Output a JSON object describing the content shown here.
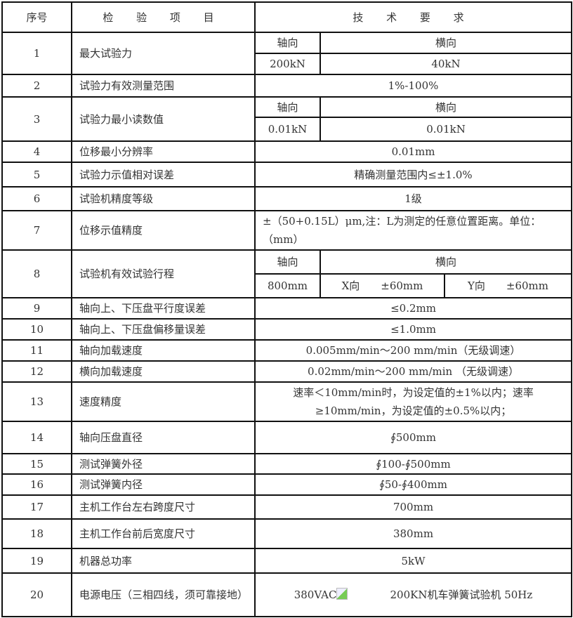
{
  "header": {
    "no": "序号",
    "item": "检 验 项 目",
    "requirement": "技 术 要 求"
  },
  "rows": [
    {
      "no": "1",
      "item": "最大试验力",
      "axial_label": "轴向",
      "lateral_label": "横向",
      "axial": "200kN",
      "lateral": "40kN"
    },
    {
      "no": "2",
      "item": "试验力有效测量范围",
      "value": "1%-100%"
    },
    {
      "no": "3",
      "item": "试验力最小读数值",
      "axial_label": "轴向",
      "lateral_label": "横向",
      "axial": "0.01kN",
      "lateral": "0.01kN"
    },
    {
      "no": "4",
      "item": "位移最小分辨率",
      "value": "0.01mm"
    },
    {
      "no": "5",
      "item": "试验力示值相对误差",
      "value": "精确测量范围内≤±1.0%"
    },
    {
      "no": "6",
      "item": "试验机精度等级",
      "value": "1级"
    },
    {
      "no": "7",
      "item": "位移示值精度",
      "value": "±（50+0.15L）μm,注：L为测定的任意位置距离。单位：（mm）"
    },
    {
      "no": "8",
      "item": "试验机有效试验行程",
      "axial_label": "轴向",
      "lateral_label": "横向",
      "axial": "800mm",
      "x": "X向　　±60mm",
      "y": "Y向　　±60mm"
    },
    {
      "no": "9",
      "item": "轴向上、下压盘平行度误差",
      "value": "≤0.2mm"
    },
    {
      "no": "10",
      "item": "轴向上、下压盘偏移量误差",
      "value": "≤1.0mm"
    },
    {
      "no": "11",
      "item": "轴向加载速度",
      "value": "0.005mm/min～200 mm/min（无级调速）"
    },
    {
      "no": "12",
      "item": "横向加载速度",
      "value": "0.02mm/min～200 mm/min （无级调速）"
    },
    {
      "no": "13",
      "item": "速度精度",
      "value": "速率＜10mm/min时，为设定值的±1%以内；速率≥10mm/min，为设定值的±0.5%以内；"
    },
    {
      "no": "14",
      "item": "轴向压盘直径",
      "value": "∮500mm"
    },
    {
      "no": "15",
      "item": "测试弹簧外径",
      "value": "∮100-∮500mm"
    },
    {
      "no": "16",
      "item": "测试弹簧内径",
      "value": "∮50-∮400mm"
    },
    {
      "no": "17",
      "item": "主机工作台左右跨度尺寸",
      "value": "700mm"
    },
    {
      "no": "18",
      "item": "主机工作台前后宽度尺寸",
      "value": "380mm"
    },
    {
      "no": "19",
      "item": "机器总功率",
      "value": "5kW"
    },
    {
      "no": "20",
      "item": "电源电压（三相四线，须可靠接地）",
      "value": "380VAC",
      "image_alt": "200KN机车弹簧试验机 50Hz"
    }
  ]
}
